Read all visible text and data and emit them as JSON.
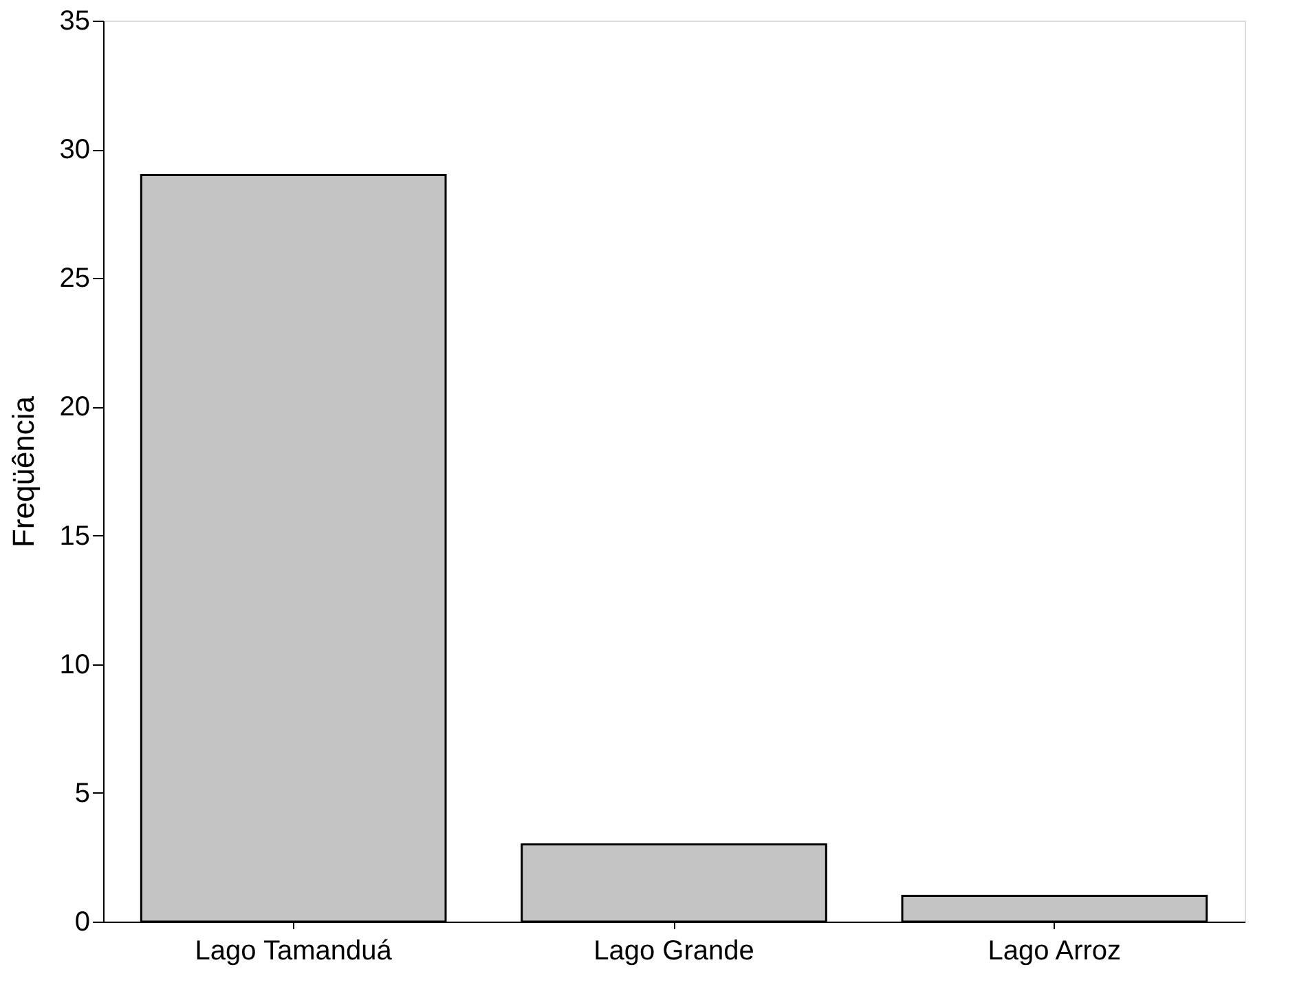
{
  "chart_data": {
    "type": "bar",
    "ylabel": "Freqüência",
    "categories": [
      "Lago Tamanduá",
      "Lago Grande",
      "Lago Arroz"
    ],
    "values": [
      29,
      3,
      1
    ],
    "color": "#c4c4c4",
    "ylim": [
      0,
      35
    ],
    "yticks": [
      0,
      5,
      10,
      15,
      20,
      25,
      30,
      35
    ],
    "grid": false
  }
}
